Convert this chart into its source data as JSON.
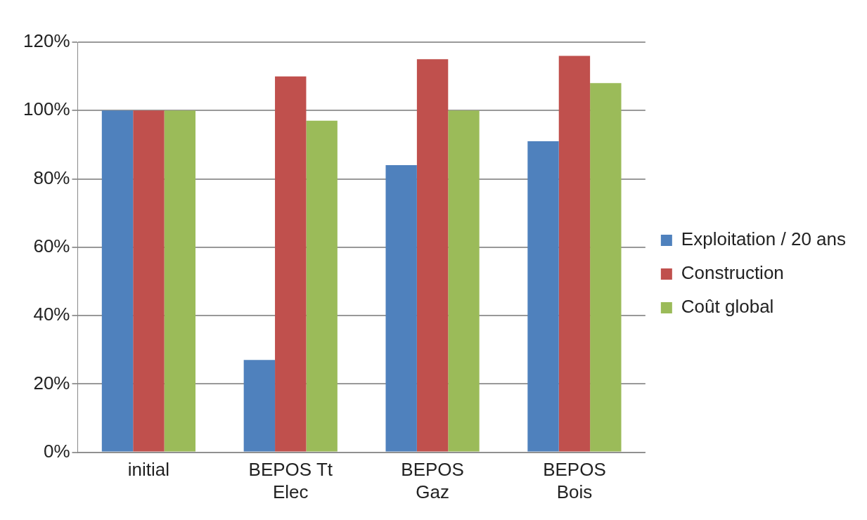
{
  "chart_data": {
    "type": "bar",
    "categories": [
      "initial",
      "BEPOS Tt Elec",
      "BEPOS Gaz",
      "BEPOS Bois"
    ],
    "series": [
      {
        "name": "Exploitation / 20 ans",
        "color": "#4f81bd",
        "values": [
          100,
          27,
          84,
          91
        ]
      },
      {
        "name": "Construction",
        "color": "#c0504d",
        "values": [
          100,
          110,
          115,
          116
        ]
      },
      {
        "name": "Coût global",
        "color": "#9bbb59",
        "values": [
          100,
          97,
          100,
          108
        ]
      }
    ],
    "ylim": [
      0,
      120
    ],
    "yticks": [
      {
        "value": 0,
        "label": "0%"
      },
      {
        "value": 20,
        "label": "20%"
      },
      {
        "value": 40,
        "label": "40%"
      },
      {
        "value": 60,
        "label": "60%"
      },
      {
        "value": 80,
        "label": "80%"
      },
      {
        "value": 100,
        "label": "100%"
      },
      {
        "value": 120,
        "label": "120%"
      }
    ],
    "grid": "y",
    "legend": "right"
  }
}
